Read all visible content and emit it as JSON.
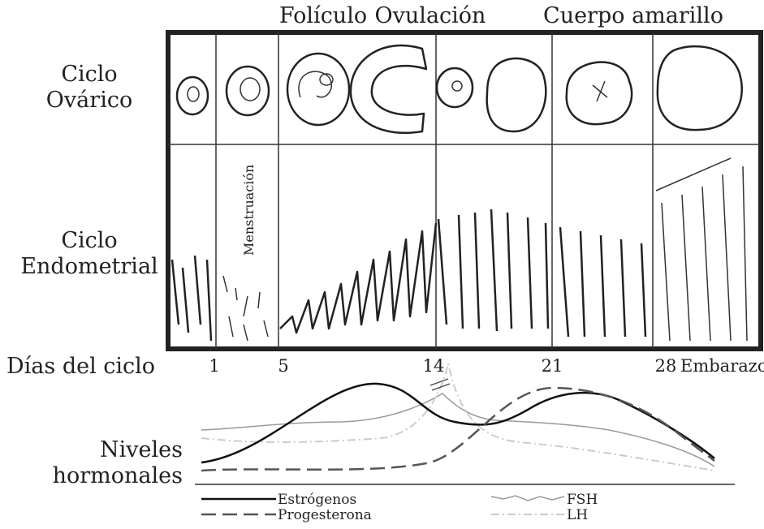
{
  "header": {
    "phases": [
      "Folículo",
      "Ovulación",
      "Cuerpo amarillo"
    ]
  },
  "rows": {
    "ovarian": [
      "Ciclo",
      "Ovárico"
    ],
    "endometrial": [
      "Ciclo",
      "Endometrial"
    ],
    "menstruation": "Menstruación"
  },
  "days": {
    "label": "Días del ciclo",
    "ticks": [
      "1",
      "5",
      "14",
      "21",
      "28"
    ],
    "pregnancy": "Embarazo"
  },
  "hormones": {
    "label": [
      "Niveles",
      "hormonales"
    ],
    "legend": [
      "Estrógenos",
      "Progesterona",
      "FSH",
      "LH"
    ]
  }
}
